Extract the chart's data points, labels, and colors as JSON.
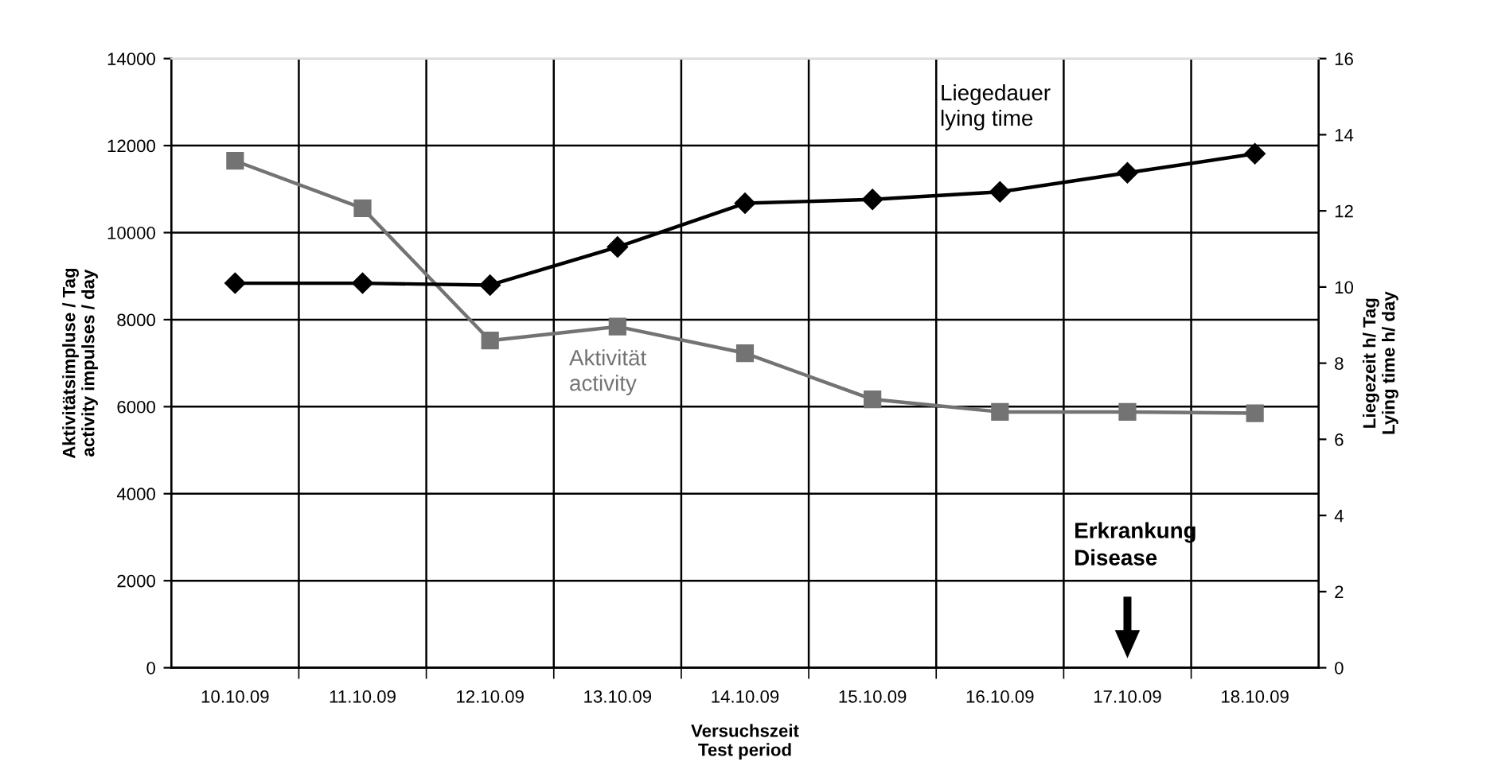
{
  "chart_data": {
    "type": "line",
    "categories": [
      "10.10.09",
      "11.10.09",
      "12.10.09",
      "13.10.09",
      "14.10.09",
      "15.10.09",
      "16.10.09",
      "17.10.09",
      "18.10.09"
    ],
    "series": [
      {
        "name": "Aktivität\nactivity",
        "color": "#737373",
        "marker": "square",
        "values": [
          11650,
          10560,
          7520,
          7840,
          7230,
          6170,
          5880,
          5880,
          5850
        ]
      },
      {
        "name": "Liegedauer\nlying time",
        "color": "#000000",
        "marker": "diamond",
        "axis": "y2",
        "values": [
          10.1,
          10.1,
          10.05,
          11.05,
          12.2,
          12.3,
          12.5,
          13.0,
          13.5
        ]
      }
    ],
    "xlabel": "Versuchszeit\nTest period",
    "ylabel": "Aktivitätsimpluse / Tag\nactivity impulses / day",
    "y2label": "Liegezeit h/ Tag\nLying time h/ day",
    "ylim": [
      0,
      14000
    ],
    "yticks": [
      0,
      2000,
      4000,
      6000,
      8000,
      10000,
      12000,
      14000
    ],
    "y2lim": [
      0,
      16
    ],
    "y2ticks": [
      0,
      2,
      4,
      6,
      8,
      10,
      12,
      14,
      16
    ],
    "grid": true,
    "legend": false,
    "line_style": "solid",
    "annotations": [
      "Erkrankung\nDisease"
    ]
  }
}
